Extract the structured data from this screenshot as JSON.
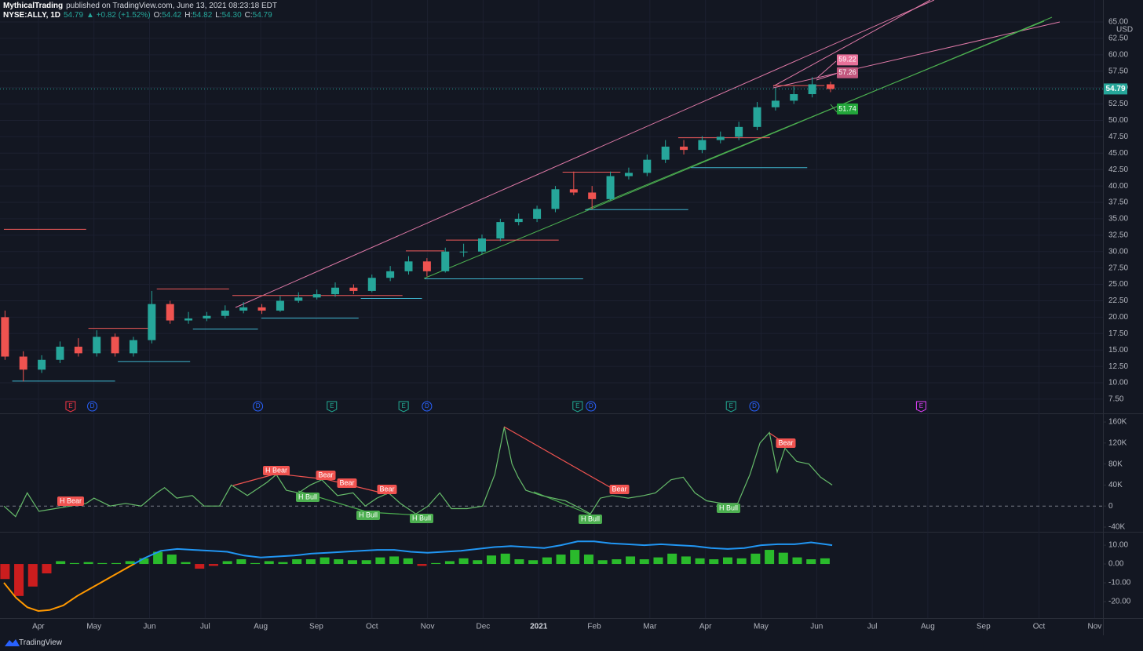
{
  "header": {
    "author": "MythicalTrading",
    "published": "published on TradingView.com, June 13, 2021 08:23:18 EDT",
    "symbol": "NYSE:ALLY, 1D",
    "price": "54.79",
    "change": "▲ +0.82 (+1.52%)",
    "ohlc": [
      {
        "label": "O:",
        "value": "54.42"
      },
      {
        "label": "H:",
        "value": "54.82"
      },
      {
        "label": "L:",
        "value": "54.30"
      },
      {
        "label": "C:",
        "value": "54.79"
      }
    ]
  },
  "footer": {
    "brand": "TradingView"
  },
  "chart_data": [
    {
      "type": "candlestick",
      "unit": "USD",
      "grid": true,
      "up_color": "#26a69a",
      "down_color": "#ef5350",
      "xlim": [
        -0.69,
        19.15
      ],
      "xticks": [
        {
          "value": 0,
          "label": "Apr"
        },
        {
          "value": 1,
          "label": "May"
        },
        {
          "value": 2,
          "label": "Jun"
        },
        {
          "value": 3,
          "label": "Jul"
        },
        {
          "value": 4,
          "label": "Aug"
        },
        {
          "value": 5,
          "label": "Sep"
        },
        {
          "value": 6,
          "label": "Oct"
        },
        {
          "value": 7,
          "label": "Nov"
        },
        {
          "value": 8,
          "label": "Dec"
        },
        {
          "value": 9,
          "label": "2021"
        },
        {
          "value": 10,
          "label": "Feb"
        },
        {
          "value": 11,
          "label": "Mar"
        },
        {
          "value": 12,
          "label": "Apr"
        },
        {
          "value": 13,
          "label": "May"
        },
        {
          "value": 14,
          "label": "Jun"
        },
        {
          "value": 15,
          "label": "Jul"
        },
        {
          "value": 16,
          "label": "Aug"
        },
        {
          "value": 17,
          "label": "Sep"
        },
        {
          "value": 18,
          "label": "Oct"
        },
        {
          "value": 19,
          "label": "Nov"
        }
      ],
      "ylim": [
        5.34,
        65.72
      ],
      "yticks": [
        {
          "value": 7.5,
          "label": "7.50"
        },
        {
          "value": 10,
          "label": "10.00"
        },
        {
          "value": 12.5,
          "label": "12.50"
        },
        {
          "value": 15,
          "label": "15.00"
        },
        {
          "value": 17.5,
          "label": "17.50"
        },
        {
          "value": 20,
          "label": "20.00"
        },
        {
          "value": 22.5,
          "label": "22.50"
        },
        {
          "value": 25,
          "label": "25.00"
        },
        {
          "value": 27.5,
          "label": "27.50"
        },
        {
          "value": 30,
          "label": "30.00"
        },
        {
          "value": 32.5,
          "label": "32.50"
        },
        {
          "value": 35,
          "label": "35.00"
        },
        {
          "value": 37.5,
          "label": "37.50"
        },
        {
          "value": 40,
          "label": "40.00"
        },
        {
          "value": 42.5,
          "label": "42.50"
        },
        {
          "value": 45,
          "label": "45.00"
        },
        {
          "value": 47.5,
          "label": "47.50"
        },
        {
          "value": 50,
          "label": "50.00"
        },
        {
          "value": 52.5,
          "label": "52.50"
        },
        {
          "value": 55,
          "label": "55.00"
        },
        {
          "value": 57.5,
          "label": "57.50"
        },
        {
          "value": 60,
          "label": "60.00"
        },
        {
          "value": 62.5,
          "label": "62.50"
        },
        {
          "value": 65,
          "label": "65.00"
        }
      ],
      "x": [
        -0.6,
        -0.27,
        0.06,
        0.39,
        0.72,
        1.05,
        1.38,
        1.71,
        2.04,
        2.37,
        2.7,
        3.03,
        3.36,
        3.69,
        4.02,
        4.35,
        4.68,
        5.01,
        5.34,
        5.67,
        6.0,
        6.33,
        6.66,
        6.99,
        7.32,
        7.65,
        7.98,
        8.31,
        8.64,
        8.97,
        9.3,
        9.63,
        9.96,
        10.29,
        10.62,
        10.95,
        11.28,
        11.61,
        11.94,
        12.27,
        12.6,
        12.93,
        13.26,
        13.59,
        13.92,
        14.25
      ],
      "open": [
        20,
        14,
        12,
        13.5,
        15.5,
        14.5,
        17,
        14.5,
        16.5,
        22,
        19.5,
        19.8,
        20.2,
        21,
        21.5,
        21,
        22.5,
        23,
        23.5,
        24.5,
        24,
        26,
        27,
        28.5,
        27,
        30,
        30,
        32,
        34.5,
        35,
        36.5,
        39.5,
        39,
        38,
        41.5,
        42,
        44,
        46,
        45.5,
        47,
        47.5,
        49,
        52,
        53,
        54,
        55.5
      ],
      "high": [
        21,
        14.8,
        14.2,
        16.3,
        16.8,
        18,
        17.5,
        17,
        24,
        22.5,
        20.8,
        20.8,
        21.8,
        22.3,
        22,
        23.2,
        23.8,
        24.2,
        25.3,
        25,
        26.5,
        27.8,
        29.3,
        29,
        30.6,
        31.2,
        32.6,
        35,
        35.8,
        37,
        40,
        42.2,
        40,
        42.2,
        42.8,
        44.8,
        47,
        47,
        47.6,
        48.3,
        49.8,
        52.8,
        55,
        55.2,
        56.6,
        55.9
      ],
      "low": [
        13.5,
        10.2,
        11.5,
        13,
        14,
        14,
        14,
        14,
        16,
        19,
        19,
        19.4,
        19.8,
        20.6,
        20.5,
        20.8,
        22.2,
        22.7,
        23.1,
        23.5,
        23.8,
        25.5,
        26.5,
        26.2,
        26.8,
        29.2,
        29.6,
        31.6,
        34,
        34.5,
        36,
        38.6,
        36.5,
        37.8,
        41,
        41.5,
        43.5,
        44.8,
        45,
        46.5,
        47,
        48.5,
        51.5,
        52.5,
        53.5,
        54.3
      ],
      "close": [
        14,
        12,
        13.5,
        15.5,
        14.5,
        17,
        14.5,
        16.5,
        22,
        19.5,
        19.8,
        20.2,
        21,
        21.5,
        21,
        22.5,
        23,
        23.5,
        24.5,
        24,
        26,
        27,
        28.5,
        27,
        30,
        30,
        32,
        34.5,
        35,
        36.5,
        39.5,
        39,
        38,
        41.5,
        42,
        44,
        46,
        45.5,
        47,
        47.5,
        49,
        52,
        53,
        54,
        55.5,
        54.79
      ],
      "last_price": 54.79,
      "last_price_color": "#26a69a",
      "resistance_color": "#f05a5a",
      "support_color": "#3fb6d0",
      "resistance": [
        {
          "price": 33.4,
          "from": -0.62,
          "to": 0.86
        },
        {
          "price": 18.3,
          "from": 0.9,
          "to": 2.1
        },
        {
          "price": 24.3,
          "from": 2.13,
          "to": 3.43
        },
        {
          "price": 23.3,
          "from": 3.49,
          "to": 6.55
        },
        {
          "price": 30.1,
          "from": 6.61,
          "to": 7.3
        },
        {
          "price": 31.75,
          "from": 7.33,
          "to": 9.36
        },
        {
          "price": 42.1,
          "from": 9.43,
          "to": 10.47
        },
        {
          "price": 47.35,
          "from": 11.51,
          "to": 13.16
        },
        {
          "price": 55.3,
          "from": 13.22,
          "to": 14.14
        }
      ],
      "support": [
        {
          "price": 10.25,
          "from": -0.47,
          "to": 1.38
        },
        {
          "price": 13.25,
          "from": 1.43,
          "to": 2.73
        },
        {
          "price": 18.2,
          "from": 2.78,
          "to": 3.95
        },
        {
          "price": 19.85,
          "from": 4.01,
          "to": 5.76
        },
        {
          "price": 22.85,
          "from": 5.8,
          "to": 6.9
        },
        {
          "price": 25.85,
          "from": 6.95,
          "to": 9.8
        },
        {
          "price": 36.4,
          "from": 9.84,
          "to": 11.69
        },
        {
          "price": 42.8,
          "from": 11.74,
          "to": 13.83
        }
      ],
      "price_labels": [
        {
          "value": 59.22,
          "color": "#e8719a"
        },
        {
          "value": 57.26,
          "color": "#c2577e"
        },
        {
          "value": 51.74,
          "color": "#22a63a"
        }
      ],
      "events": [
        {
          "label": "E",
          "x": 0.58,
          "color": "#f23645",
          "shape": "flag"
        },
        {
          "label": "D",
          "x": 0.97,
          "color": "#2962ff",
          "shape": "circle"
        },
        {
          "label": "D",
          "x": 3.95,
          "color": "#2962ff",
          "shape": "circle"
        },
        {
          "label": "E",
          "x": 5.28,
          "color": "#22ab94",
          "shape": "flag"
        },
        {
          "label": "E",
          "x": 6.57,
          "color": "#22ab94",
          "shape": "flag"
        },
        {
          "label": "D",
          "x": 6.99,
          "color": "#2962ff",
          "shape": "circle"
        },
        {
          "label": "E",
          "x": 9.7,
          "color": "#22ab94",
          "shape": "flag"
        },
        {
          "label": "D",
          "x": 9.94,
          "color": "#2962ff",
          "shape": "circle"
        },
        {
          "label": "E",
          "x": 12.46,
          "color": "#22ab94",
          "shape": "flag"
        },
        {
          "label": "D",
          "x": 12.88,
          "color": "#2962ff",
          "shape": "circle"
        },
        {
          "label": "E",
          "x": 15.88,
          "color": "#e040fb",
          "shape": "flag"
        }
      ]
    },
    {
      "type": "line",
      "color": "#66bb6a",
      "zero_line": true,
      "ylim": [
        -49000,
        175000
      ],
      "yticks": [
        {
          "value": 160000,
          "label": "160K"
        },
        {
          "value": 120000,
          "label": "120K"
        },
        {
          "value": 80000,
          "label": "80K"
        },
        {
          "value": 40000,
          "label": "40K"
        },
        0,
        {
          "value": -40000,
          "label": "-40K"
        }
      ],
      "x": [
        -0.62,
        -0.41,
        -0.2,
        0.01,
        0.3,
        0.58,
        0.86,
        1.0,
        1.29,
        1.57,
        1.85,
        2.13,
        2.27,
        2.49,
        2.77,
        2.98,
        3.26,
        3.47,
        3.76,
        4.11,
        4.28,
        4.46,
        4.68,
        4.89,
        5.1,
        5.38,
        5.66,
        5.88,
        6.09,
        6.3,
        6.51,
        6.79,
        7.01,
        7.22,
        7.43,
        7.71,
        7.99,
        8.21,
        8.38,
        8.52,
        8.63,
        8.77,
        9.05,
        9.48,
        9.76,
        9.93,
        10.11,
        10.32,
        10.61,
        10.89,
        11.1,
        11.38,
        11.6,
        11.81,
        12.02,
        12.3,
        12.58,
        12.8,
        12.98,
        13.15,
        13.29,
        13.43,
        13.64,
        13.86,
        14.07,
        14.28
      ],
      "values": [
        0,
        -20000,
        25000,
        -10000,
        -5000,
        0,
        5000,
        15000,
        0,
        5000,
        0,
        25000,
        35000,
        15000,
        20000,
        0,
        0,
        40000,
        20000,
        45000,
        60000,
        30000,
        25000,
        40000,
        50000,
        20000,
        25000,
        0,
        15000,
        25000,
        5000,
        -15000,
        0,
        25000,
        -5000,
        -5000,
        0,
        60000,
        150000,
        80000,
        55000,
        30000,
        20000,
        10000,
        -5000,
        -15000,
        15000,
        20000,
        15000,
        20000,
        25000,
        50000,
        55000,
        25000,
        10000,
        5000,
        5000,
        60000,
        120000,
        140000,
        65000,
        110000,
        85000,
        80000,
        55000,
        40000
      ],
      "labels": [
        {
          "text": "H Bear",
          "color": "#f05350"
        },
        {
          "text": "H Bear",
          "color": "#f05350"
        },
        {
          "text": "Bear",
          "color": "#f05350"
        },
        {
          "text": "Bear",
          "color": "#f05350"
        },
        {
          "text": "Bear",
          "color": "#f05350"
        },
        {
          "text": "H Bull",
          "color": "#4caf50"
        },
        {
          "text": "H Bull",
          "color": "#4caf50"
        },
        {
          "text": "H Bull",
          "color": "#4caf50"
        },
        {
          "text": "Bear",
          "color": "#f05350"
        },
        {
          "text": "H Bull",
          "color": "#4caf50"
        },
        {
          "text": "H Bull",
          "color": "#4caf50"
        },
        {
          "text": "Bear",
          "color": "#f05350"
        }
      ]
    },
    {
      "type": "bar",
      "up_color": "#2ecc2e",
      "down_color": "#e01e1e",
      "ylim": [
        -28.75,
        16.7
      ],
      "yticks": [
        {
          "value": 10,
          "label": "10.00"
        },
        {
          "value": 0,
          "label": "0.00"
        },
        {
          "value": -10,
          "label": "-10.00"
        },
        {
          "value": -20,
          "label": "-20.00"
        }
      ],
      "x": [
        -0.6,
        -0.35,
        -0.1,
        0.15,
        0.4,
        0.65,
        0.9,
        1.15,
        1.4,
        1.65,
        1.9,
        2.15,
        2.4,
        2.65,
        2.9,
        3.15,
        3.4,
        3.65,
        3.9,
        4.15,
        4.4,
        4.65,
        4.9,
        5.15,
        5.4,
        5.65,
        5.9,
        6.15,
        6.4,
        6.65,
        6.9,
        7.15,
        7.4,
        7.65,
        7.9,
        8.15,
        8.4,
        8.65,
        8.9,
        9.15,
        9.4,
        9.65,
        9.9,
        10.15,
        10.4,
        10.65,
        10.9,
        11.15,
        11.4,
        11.65,
        11.9,
        12.15,
        12.4,
        12.65,
        12.9,
        13.15,
        13.4,
        13.65,
        13.9,
        14.15
      ],
      "values": [
        -8,
        -17,
        -12,
        -5,
        1.5,
        0.5,
        1,
        0.5,
        0.5,
        1.5,
        3,
        6.5,
        5,
        1,
        -2.5,
        -1,
        1.5,
        2.5,
        0.5,
        1.5,
        1,
        2.5,
        2.5,
        3.5,
        2.5,
        2,
        2,
        3.5,
        4,
        3,
        -1,
        0.5,
        1.5,
        3,
        2,
        4.5,
        5.5,
        2.5,
        2,
        3.5,
        5,
        7.5,
        5,
        2,
        2.5,
        4,
        2.5,
        3.5,
        5.5,
        4,
        3,
        2.5,
        3.5,
        3,
        5.5,
        7.5,
        6,
        3.5,
        2.5,
        3
      ],
      "line": {
        "color": "#2196f3",
        "negative_color": "#ff9800",
        "x": [
          -0.62,
          -0.4,
          -0.2,
          0.0,
          0.2,
          0.45,
          0.7,
          1.0,
          1.3,
          1.6,
          1.9,
          2.2,
          2.5,
          2.8,
          3.1,
          3.4,
          3.7,
          4.0,
          4.3,
          4.6,
          4.9,
          5.2,
          5.5,
          5.8,
          6.1,
          6.4,
          6.7,
          7.0,
          7.3,
          7.6,
          7.9,
          8.2,
          8.5,
          8.8,
          9.1,
          9.4,
          9.7,
          10.0,
          10.3,
          10.6,
          10.9,
          11.2,
          11.5,
          11.8,
          12.1,
          12.4,
          12.7,
          13.0,
          13.3,
          13.6,
          13.9,
          14.28
        ],
        "values": [
          -10,
          -18,
          -23,
          -25,
          -24.5,
          -22,
          -17,
          -12,
          -7,
          -2,
          3,
          7,
          8,
          7.5,
          7,
          6.5,
          4.5,
          3.5,
          4,
          4.5,
          5.5,
          6,
          6.5,
          7,
          7.5,
          7.5,
          6.5,
          6,
          6.5,
          7,
          8,
          9,
          9.5,
          9,
          8.5,
          10,
          12,
          12,
          11,
          10.5,
          10,
          10.5,
          10,
          9.5,
          8.5,
          8,
          8.5,
          10,
          10.5,
          10.5,
          11.5,
          10
        ]
      }
    }
  ]
}
